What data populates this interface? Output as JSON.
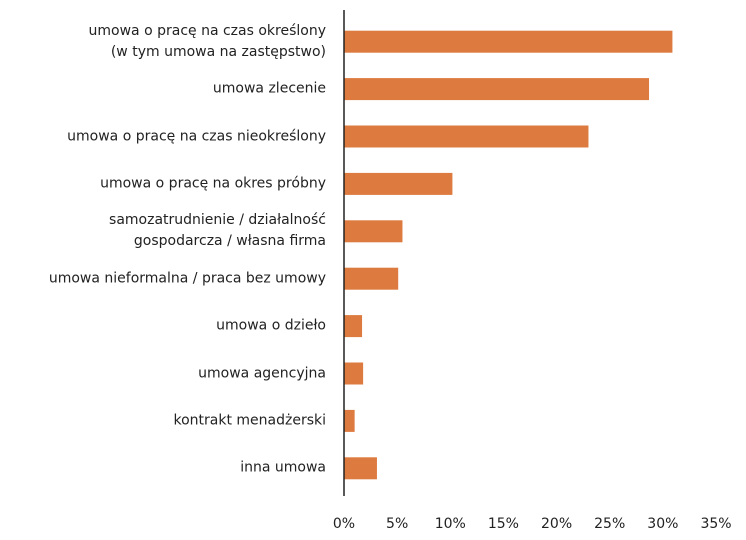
{
  "chart_data": {
    "type": "bar",
    "orientation": "horizontal",
    "categories": [
      "umowa o pracę na czas określony\n(w tym umowa na zastępstwo)",
      "umowa zlecenie",
      "umowa o pracę na czas nieokreślony",
      "umowa o pracę na okres próbny",
      "samozatrudnienie / działalność\ngospodarcza / własna firma",
      "umowa nieformalna / praca bez umowy",
      "umowa o dzieło",
      "umowa agencyjna",
      "kontrakt menadżerski",
      "inna umowa"
    ],
    "values": [
      30.9,
      28.7,
      23.0,
      10.2,
      5.5,
      5.1,
      1.7,
      1.8,
      1.0,
      3.1
    ],
    "color": "#dd7a3f",
    "xlim": [
      0,
      35
    ],
    "xticks": [
      {
        "value": 0,
        "label": "0%"
      },
      {
        "value": 5,
        "label": "5%"
      },
      {
        "value": 10,
        "label": "10%"
      },
      {
        "value": 15,
        "label": "15%"
      },
      {
        "value": 20,
        "label": "20%"
      },
      {
        "value": 25,
        "label": "25%"
      },
      {
        "value": 30,
        "label": "30%"
      },
      {
        "value": 35,
        "label": "35%"
      }
    ],
    "grid": false
  }
}
